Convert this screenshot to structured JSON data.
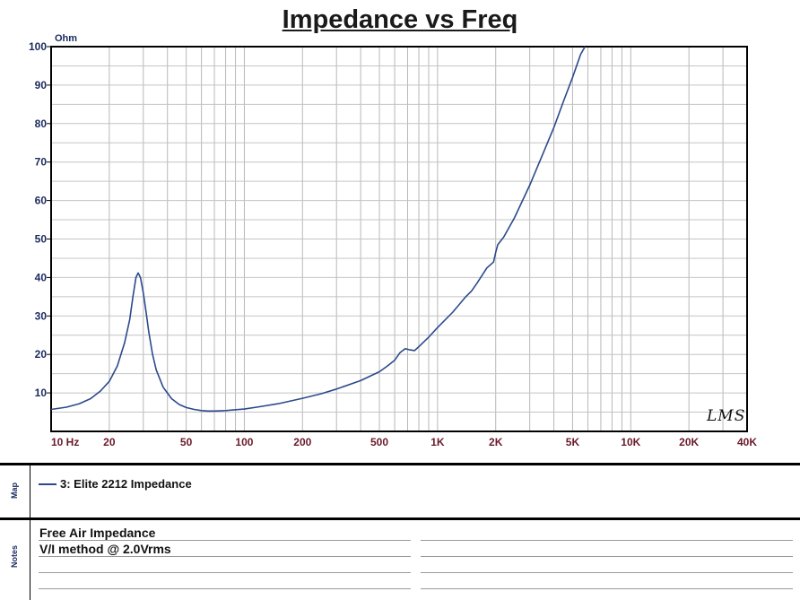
{
  "chart_data": {
    "type": "line",
    "title": "Impedance vs Freq",
    "ylabel": "Ohm",
    "xscale": "log",
    "xlim": [
      10,
      40000
    ],
    "ylim": [
      0,
      100
    ],
    "grid": true,
    "y_ticks": [
      {
        "value": 10,
        "label": "10"
      },
      {
        "value": 20,
        "label": "20"
      },
      {
        "value": 30,
        "label": "30"
      },
      {
        "value": 40,
        "label": "40"
      },
      {
        "value": 50,
        "label": "50"
      },
      {
        "value": 60,
        "label": "60"
      },
      {
        "value": 70,
        "label": "70"
      },
      {
        "value": 80,
        "label": "80"
      },
      {
        "value": 90,
        "label": "90"
      },
      {
        "value": 100,
        "label": "100"
      }
    ],
    "x_ticks": [
      {
        "value": 10,
        "label": "10 Hz"
      },
      {
        "value": 20,
        "label": "20"
      },
      {
        "value": 50,
        "label": "50"
      },
      {
        "value": 100,
        "label": "100"
      },
      {
        "value": 200,
        "label": "200"
      },
      {
        "value": 500,
        "label": "500"
      },
      {
        "value": 1000,
        "label": "1K"
      },
      {
        "value": 2000,
        "label": "2K"
      },
      {
        "value": 5000,
        "label": "5K"
      },
      {
        "value": 10000,
        "label": "10K"
      },
      {
        "value": 20000,
        "label": "20K"
      },
      {
        "value": 40000,
        "label": "40K"
      }
    ],
    "series": [
      {
        "name": "3: Elite 2212 Impedance",
        "color": "#2b4a8c",
        "points": [
          [
            10,
            5.7
          ],
          [
            12,
            6.3
          ],
          [
            14,
            7.2
          ],
          [
            16,
            8.5
          ],
          [
            18,
            10.5
          ],
          [
            20,
            13.0
          ],
          [
            22,
            17.0
          ],
          [
            24,
            23.0
          ],
          [
            25.5,
            29.0
          ],
          [
            26.5,
            35.0
          ],
          [
            27.5,
            40.0
          ],
          [
            28.2,
            41.2
          ],
          [
            29,
            40.0
          ],
          [
            30,
            36.0
          ],
          [
            31,
            31.0
          ],
          [
            32,
            26.0
          ],
          [
            33.5,
            20.0
          ],
          [
            35,
            16.0
          ],
          [
            38,
            11.5
          ],
          [
            42,
            8.5
          ],
          [
            46,
            7.0
          ],
          [
            50,
            6.2
          ],
          [
            55,
            5.7
          ],
          [
            60,
            5.4
          ],
          [
            65,
            5.3
          ],
          [
            70,
            5.3
          ],
          [
            80,
            5.4
          ],
          [
            100,
            5.8
          ],
          [
            120,
            6.4
          ],
          [
            150,
            7.2
          ],
          [
            200,
            8.6
          ],
          [
            250,
            9.8
          ],
          [
            300,
            11.0
          ],
          [
            400,
            13.2
          ],
          [
            500,
            15.5
          ],
          [
            550,
            17.0
          ],
          [
            600,
            18.5
          ],
          [
            640,
            20.5
          ],
          [
            680,
            21.5
          ],
          [
            720,
            21.2
          ],
          [
            760,
            21.0
          ],
          [
            800,
            22.0
          ],
          [
            900,
            24.5
          ],
          [
            1000,
            27.0
          ],
          [
            1200,
            31.0
          ],
          [
            1400,
            35.0
          ],
          [
            1500,
            36.5
          ],
          [
            1600,
            38.5
          ],
          [
            1800,
            42.5
          ],
          [
            1950,
            44.0
          ],
          [
            2000,
            46.5
          ],
          [
            2050,
            48.5
          ],
          [
            2200,
            50.5
          ],
          [
            2500,
            55.5
          ],
          [
            3000,
            64.0
          ],
          [
            3500,
            72.0
          ],
          [
            4000,
            79.0
          ],
          [
            4500,
            86.0
          ],
          [
            5000,
            92.0
          ],
          [
            5500,
            98.0
          ],
          [
            5800,
            100.0
          ]
        ]
      }
    ]
  },
  "legend_panel": {
    "label": "Map",
    "entry": "3: Elite 2212 Impedance"
  },
  "notes_panel": {
    "label": "Notes",
    "lines": [
      "Free Air Impedance",
      "V/I method @ 2.0Vrms"
    ]
  },
  "watermark": "LMS"
}
